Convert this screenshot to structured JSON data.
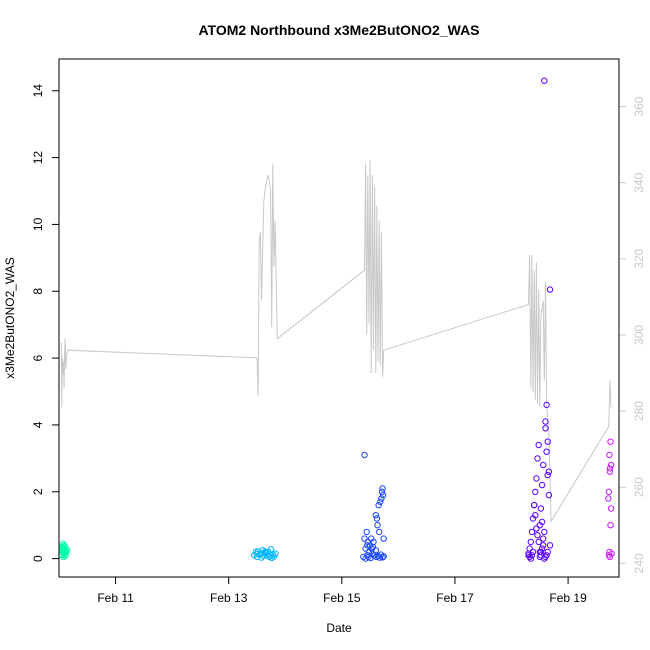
{
  "chart_data": {
    "type": "scatter",
    "title": "ATOM2 Northbound x3Me2ButONO2_WAS",
    "xlabel": "Date",
    "ylabel": "x3Me2ButONO2_WAS",
    "x_unit": "days, February (date axis)",
    "xlim": [
      10.0,
      19.9
    ],
    "ylim": [
      -0.55,
      14.95
    ],
    "y2lim": [
      236.4,
      372.5
    ],
    "x_ticks": [
      {
        "value": 11,
        "label": "Feb 11"
      },
      {
        "value": 13,
        "label": "Feb 13"
      },
      {
        "value": 15,
        "label": "Feb 15"
      },
      {
        "value": 17,
        "label": "Feb 17"
      },
      {
        "value": 19,
        "label": "Feb 19"
      }
    ],
    "y_ticks": [
      {
        "value": 0,
        "label": "0"
      },
      {
        "value": 2,
        "label": "2"
      },
      {
        "value": 4,
        "label": "4"
      },
      {
        "value": 6,
        "label": "6"
      },
      {
        "value": 8,
        "label": "8"
      },
      {
        "value": 10,
        "label": "10"
      },
      {
        "value": 12,
        "label": "12"
      },
      {
        "value": 14,
        "label": "14"
      }
    ],
    "y2_ticks": [
      {
        "value": 240,
        "label": "240"
      },
      {
        "value": 260,
        "label": "260"
      },
      {
        "value": 280,
        "label": "280"
      },
      {
        "value": 300,
        "label": "300"
      },
      {
        "value": 320,
        "label": "320"
      },
      {
        "value": 340,
        "label": "340"
      },
      {
        "value": 360,
        "label": "360"
      }
    ],
    "grid": false,
    "colors": {
      "line": "#c8c8c8",
      "axis": "#000000",
      "right_axis": "#c8c8c8"
    },
    "line_series": {
      "axis": "right",
      "x": [
        10.04,
        10.05,
        10.06,
        10.07,
        10.08,
        10.09,
        10.1,
        10.11,
        10.12,
        10.13,
        10.15,
        13.5,
        13.52,
        13.54,
        13.56,
        13.58,
        13.62,
        13.66,
        13.7,
        13.74,
        13.76,
        13.78,
        13.8,
        13.82,
        13.86,
        15.4,
        15.42,
        15.44,
        15.46,
        15.48,
        15.5,
        15.52,
        15.54,
        15.56,
        15.58,
        15.6,
        15.62,
        15.64,
        15.66,
        15.68,
        15.7,
        15.72,
        15.74,
        18.3,
        18.32,
        18.34,
        18.36,
        18.38,
        18.4,
        18.42,
        18.44,
        18.46,
        18.48,
        18.5,
        18.52,
        18.56,
        18.58,
        18.6,
        18.62,
        18.64,
        18.66,
        18.7,
        19.72,
        19.74,
        19.76
      ],
      "y": [
        298,
        281,
        294,
        290,
        293,
        286,
        296,
        299,
        291,
        294,
        296,
        294,
        284,
        325,
        327,
        309,
        335,
        340,
        342,
        338,
        302,
        345,
        318,
        330,
        299,
        317,
        345,
        300,
        342,
        303,
        346,
        290,
        342,
        296,
        339,
        290,
        334,
        293,
        330,
        292,
        327,
        289,
        296,
        308,
        321,
        286,
        321,
        285,
        317,
        283,
        319,
        282,
        312,
        281,
        305,
        309,
        288,
        314,
        282,
        278,
        274,
        251,
        276,
        288,
        281
      ]
    },
    "series": [
      {
        "color": "#00ffaa",
        "x": [
          10.04,
          10.05,
          10.06,
          10.07,
          10.08,
          10.09,
          10.1,
          10.11,
          10.12,
          10.14,
          10.05,
          10.07,
          10.09,
          10.11,
          10.06,
          10.08,
          10.1,
          10.13
        ],
        "y": [
          0.1,
          0.35,
          0.2,
          0.28,
          0.15,
          0.4,
          0.22,
          0.3,
          0.12,
          0.27,
          0.25,
          0.45,
          0.18,
          0.08,
          0.32,
          0.05,
          0.36,
          0.2
        ]
      },
      {
        "color": "#00b7ff",
        "x": [
          13.45,
          13.48,
          13.5,
          13.52,
          13.55,
          13.57,
          13.6,
          13.62,
          13.65,
          13.68,
          13.7,
          13.72,
          13.75,
          13.78,
          13.8,
          13.83,
          13.5,
          13.58,
          13.66,
          13.74,
          13.76,
          13.64
        ],
        "y": [
          0.1,
          0.2,
          0.05,
          0.22,
          0.12,
          0.15,
          0.25,
          0.08,
          0.18,
          0.1,
          0.2,
          0.05,
          0.28,
          0.12,
          0.06,
          0.15,
          0.14,
          0.03,
          0.16,
          0.09,
          0.02,
          0.21
        ]
      },
      {
        "color": "#1a47ff",
        "x": [
          15.38,
          15.4,
          15.42,
          15.44,
          15.45,
          15.46,
          15.48,
          15.5,
          15.52,
          15.54,
          15.55,
          15.56,
          15.58,
          15.6,
          15.62,
          15.63,
          15.65,
          15.66,
          15.68,
          15.7,
          15.71,
          15.72,
          15.73,
          15.74,
          15.42,
          15.47,
          15.51,
          15.57,
          15.61,
          15.64,
          15.67,
          15.69,
          15.72,
          15.74,
          15.4,
          15.6,
          15.45,
          15.53
        ],
        "y": [
          0.05,
          3.1,
          0.3,
          0.8,
          0.1,
          0.5,
          0.2,
          0.4,
          0.6,
          0.15,
          0.35,
          0.5,
          0.1,
          1.3,
          1.2,
          1.0,
          1.6,
          0.8,
          1.7,
          1.8,
          2.0,
          2.1,
          1.9,
          0.6,
          0.0,
          0.05,
          0.02,
          0.1,
          0.05,
          0.08,
          0.03,
          0.12,
          0.04,
          0.07,
          0.6,
          0.25,
          0.4,
          0.3
        ]
      },
      {
        "color": "#5a00ff",
        "x": [
          18.3,
          18.32,
          18.34,
          18.36,
          18.38,
          18.4,
          18.42,
          18.44,
          18.46,
          18.48,
          18.5,
          18.52,
          18.54,
          18.56,
          18.58,
          18.6,
          18.62,
          18.64,
          18.66,
          18.68,
          18.58,
          18.6,
          18.62,
          18.64,
          18.68,
          18.56,
          18.54,
          18.52,
          18.5,
          18.48,
          18.46,
          18.44,
          18.42,
          18.4,
          18.38,
          18.36,
          18.34,
          18.32,
          18.3,
          18.6,
          18.62,
          18.64,
          18.66,
          18.58,
          18.56,
          18.54,
          18.52,
          18.5
        ],
        "y": [
          0.1,
          0.3,
          0.5,
          0.8,
          1.2,
          1.6,
          2.0,
          2.4,
          3.0,
          3.4,
          1.0,
          1.5,
          2.2,
          2.8,
          14.3,
          4.1,
          4.6,
          3.5,
          2.6,
          8.05,
          0.0,
          0.05,
          0.1,
          0.2,
          0.4,
          0.6,
          0.3,
          0.1,
          0.2,
          0.5,
          0.7,
          0.9,
          1.3,
          1.6,
          0.2,
          0.1,
          0.0,
          0.05,
          0.15,
          3.9,
          3.2,
          2.5,
          1.9,
          0.8,
          0.4,
          1.1,
          0.2,
          0.05
        ]
      },
      {
        "color": "#cc1aff",
        "x": [
          19.72,
          19.73,
          19.74,
          19.75,
          19.76,
          19.72,
          19.74,
          19.76,
          19.73,
          19.75,
          19.71,
          19.77,
          19.74
        ],
        "y": [
          0.1,
          0.2,
          0.05,
          1.0,
          1.5,
          2.0,
          2.6,
          2.8,
          3.1,
          3.5,
          1.8,
          0.15,
          2.7
        ]
      }
    ]
  }
}
